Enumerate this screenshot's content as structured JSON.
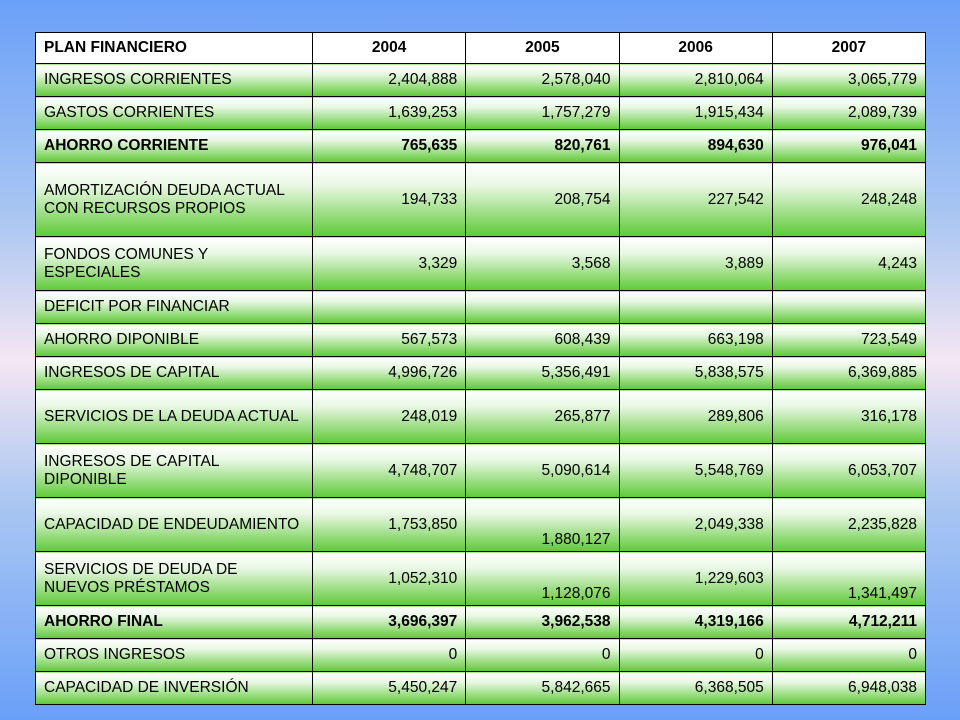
{
  "table": {
    "headers": [
      "PLAN FINANCIERO",
      "2004",
      "2005",
      "2006",
      "2007"
    ],
    "rows": [
      {
        "label": "INGRESOS CORRIENTES",
        "values": [
          "2,404,888",
          "2,578,040",
          "2,810,064",
          "3,065,779"
        ]
      },
      {
        "label": "GASTOS CORRIENTES",
        "values": [
          "1,639,253",
          "1,757,279",
          "1,915,434",
          "2,089,739"
        ]
      },
      {
        "label": "AHORRO CORRIENTE",
        "values": [
          "765,635",
          "820,761",
          "894,630",
          "976,041"
        ]
      },
      {
        "label": "AMORTIZACIÓN DEUDA ACTUAL CON RECURSOS PROPIOS",
        "values": [
          "194,733",
          "208,754",
          "227,542",
          "248,248"
        ]
      },
      {
        "label": "FONDOS COMUNES Y ESPECIALES",
        "values": [
          "3,329",
          "3,568",
          "3,889",
          "4,243"
        ]
      },
      {
        "label": "DEFICIT POR FINANCIAR",
        "values": [
          "",
          "",
          "",
          ""
        ]
      },
      {
        "label": "AHORRO DIPONIBLE",
        "values": [
          "567,573",
          "608,439",
          "663,198",
          "723,549"
        ]
      },
      {
        "label": "INGRESOS DE CAPITAL",
        "values": [
          "4,996,726",
          "5,356,491",
          "5,838,575",
          "6,369,885"
        ]
      },
      {
        "label": "SERVICIOS DE LA DEUDA ACTUAL",
        "values": [
          "248,019",
          "265,877",
          "289,806",
          "316,178"
        ]
      },
      {
        "label": "INGRESOS DE CAPITAL DIPONIBLE",
        "values": [
          "4,748,707",
          "5,090,614",
          "5,548,769",
          "6,053,707"
        ]
      },
      {
        "label": "CAPACIDAD DE ENDEUDAMIENTO",
        "values": [
          "1,753,850",
          "1,880,127",
          "2,049,338",
          "2,235,828"
        ]
      },
      {
        "label": " SERVICIOS DE DEUDA DE NUEVOS PRÉSTAMOS",
        "values": [
          "1,052,310",
          "1,128,076",
          "1,229,603",
          "1,341,497"
        ]
      },
      {
        "label": "AHORRO FINAL",
        "values": [
          "3,696,397",
          "3,962,538",
          "4,319,166",
          "4,712,211"
        ]
      },
      {
        "label": "OTROS INGRESOS",
        "values": [
          "0",
          "0",
          "0",
          "0"
        ]
      },
      {
        "label": "CAPACIDAD DE INVERSIÓN",
        "values": [
          "5,450,247",
          "5,842,665",
          "6,368,505",
          "6,948,038"
        ]
      }
    ]
  }
}
